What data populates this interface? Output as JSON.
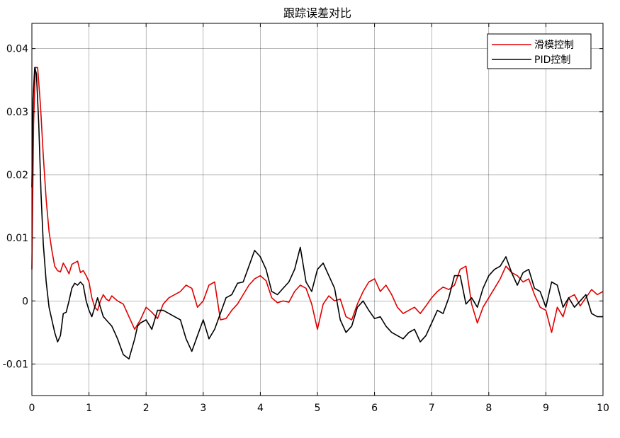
{
  "chart_data": {
    "type": "line",
    "title": "跟踪误差对比",
    "xlabel": "",
    "ylabel": "",
    "xlim": [
      0,
      10
    ],
    "ylim": [
      -0.015,
      0.044
    ],
    "xticks": [
      0,
      1,
      2,
      3,
      4,
      5,
      6,
      7,
      8,
      9,
      10
    ],
    "xtick_labels": [
      "0",
      "1",
      "2",
      "3",
      "4",
      "5",
      "6",
      "7",
      "8",
      "9",
      "10"
    ],
    "yticks": [
      -0.01,
      0,
      0.01,
      0.02,
      0.03,
      0.04
    ],
    "ytick_labels": [
      "-0.01",
      "0",
      "0.01",
      "0.02",
      "0.03",
      "0.04"
    ],
    "grid": true,
    "legend_position": "top-right",
    "series": [
      {
        "name": "滑模控制",
        "color": "#e00000",
        "x": [
          0,
          0.03,
          0.06,
          0.1,
          0.15,
          0.2,
          0.25,
          0.3,
          0.35,
          0.4,
          0.45,
          0.5,
          0.55,
          0.6,
          0.65,
          0.7,
          0.8,
          0.85,
          0.9,
          0.95,
          1.0,
          1.05,
          1.1,
          1.15,
          1.2,
          1.25,
          1.3,
          1.35,
          1.4,
          1.5,
          1.6,
          1.7,
          1.8,
          1.9,
          2.0,
          2.1,
          2.2,
          2.3,
          2.4,
          2.5,
          2.6,
          2.7,
          2.8,
          2.9,
          3.0,
          3.1,
          3.2,
          3.3,
          3.4,
          3.5,
          3.6,
          3.7,
          3.8,
          3.9,
          4.0,
          4.1,
          4.2,
          4.3,
          4.4,
          4.5,
          4.6,
          4.7,
          4.8,
          4.9,
          5.0,
          5.1,
          5.2,
          5.3,
          5.4,
          5.5,
          5.6,
          5.7,
          5.8,
          5.9,
          6.0,
          6.1,
          6.2,
          6.3,
          6.4,
          6.5,
          6.6,
          6.7,
          6.8,
          6.9,
          7.0,
          7.1,
          7.2,
          7.3,
          7.4,
          7.5,
          7.6,
          7.7,
          7.8,
          7.9,
          8.0,
          8.1,
          8.2,
          8.3,
          8.4,
          8.5,
          8.6,
          8.7,
          8.8,
          8.9,
          9.0,
          9.1,
          9.2,
          9.3,
          9.4,
          9.5,
          9.6,
          9.7,
          9.8,
          9.9,
          10.0
        ],
        "y": [
          0.005,
          0.028,
          0.037,
          0.037,
          0.031,
          0.023,
          0.016,
          0.011,
          0.008,
          0.0055,
          0.0048,
          0.0046,
          0.006,
          0.0052,
          0.0043,
          0.0058,
          0.0063,
          0.0045,
          0.0048,
          0.004,
          0.003,
          0.0005,
          -0.001,
          -0.0015,
          0.0,
          0.001,
          0.0003,
          0.0,
          0.0008,
          0.0,
          -0.0005,
          -0.0025,
          -0.0045,
          -0.003,
          -0.001,
          -0.0018,
          -0.0028,
          -0.0005,
          0.0005,
          0.001,
          0.0015,
          0.0025,
          0.002,
          -0.001,
          0.0,
          0.0025,
          0.003,
          -0.003,
          -0.0028,
          -0.0015,
          -0.0005,
          0.001,
          0.0025,
          0.0035,
          0.004,
          0.0032,
          0.0005,
          -0.0003,
          0.0,
          -0.0002,
          0.0015,
          0.0025,
          0.002,
          -0.0005,
          -0.0045,
          -0.0005,
          0.0008,
          0.0,
          0.0003,
          -0.0025,
          -0.003,
          -0.0005,
          0.0015,
          0.003,
          0.0035,
          0.0015,
          0.0025,
          0.001,
          -0.001,
          -0.002,
          -0.0015,
          -0.001,
          -0.002,
          -0.0008,
          0.0005,
          0.0015,
          0.0022,
          0.0018,
          0.0025,
          0.005,
          0.0055,
          -0.0005,
          -0.0035,
          -0.001,
          0.0005,
          0.002,
          0.0035,
          0.0055,
          0.0045,
          0.004,
          0.003,
          0.0035,
          0.001,
          -0.001,
          -0.0015,
          -0.005,
          -0.001,
          -0.0025,
          0.0005,
          0.001,
          -0.0008,
          0.0005,
          0.0018,
          0.001,
          0.0015
        ]
      },
      {
        "name": "PID控制",
        "color": "#000000",
        "x": [
          0,
          0.02,
          0.05,
          0.08,
          0.12,
          0.16,
          0.2,
          0.25,
          0.3,
          0.35,
          0.4,
          0.45,
          0.5,
          0.55,
          0.6,
          0.65,
          0.7,
          0.75,
          0.8,
          0.85,
          0.9,
          0.95,
          1.0,
          1.05,
          1.1,
          1.15,
          1.2,
          1.25,
          1.3,
          1.35,
          1.4,
          1.45,
          1.5,
          1.6,
          1.7,
          1.8,
          1.85,
          1.9,
          2.0,
          2.1,
          2.2,
          2.3,
          2.4,
          2.5,
          2.6,
          2.7,
          2.8,
          2.9,
          3.0,
          3.1,
          3.2,
          3.3,
          3.4,
          3.5,
          3.6,
          3.7,
          3.8,
          3.9,
          4.0,
          4.1,
          4.2,
          4.3,
          4.4,
          4.5,
          4.6,
          4.7,
          4.8,
          4.9,
          5.0,
          5.1,
          5.2,
          5.3,
          5.4,
          5.5,
          5.6,
          5.7,
          5.8,
          5.9,
          6.0,
          6.1,
          6.2,
          6.3,
          6.4,
          6.5,
          6.6,
          6.7,
          6.8,
          6.9,
          7.0,
          7.1,
          7.2,
          7.3,
          7.4,
          7.5,
          7.6,
          7.7,
          7.8,
          7.9,
          8.0,
          8.1,
          8.2,
          8.3,
          8.4,
          8.5,
          8.6,
          8.7,
          8.8,
          8.9,
          9.0,
          9.1,
          9.2,
          9.3,
          9.4,
          9.5,
          9.6,
          9.7,
          9.8,
          9.9,
          10.0
        ],
        "y": [
          0.018,
          0.032,
          0.037,
          0.036,
          0.028,
          0.017,
          0.009,
          0.003,
          -0.001,
          -0.003,
          -0.005,
          -0.0065,
          -0.0055,
          -0.002,
          -0.0018,
          0.0,
          0.002,
          0.0028,
          0.0025,
          0.003,
          0.0025,
          0.0,
          -0.0015,
          -0.0025,
          -0.001,
          0.0005,
          -0.001,
          -0.0025,
          -0.003,
          -0.0035,
          -0.004,
          -0.005,
          -0.006,
          -0.0085,
          -0.0092,
          -0.006,
          -0.004,
          -0.0035,
          -0.003,
          -0.0045,
          -0.0015,
          -0.0015,
          -0.002,
          -0.0025,
          -0.003,
          -0.006,
          -0.008,
          -0.0055,
          -0.003,
          -0.006,
          -0.0045,
          -0.002,
          0.0005,
          0.001,
          0.0028,
          0.003,
          0.0055,
          0.008,
          0.007,
          0.005,
          0.0015,
          0.001,
          0.002,
          0.003,
          0.005,
          0.0085,
          0.003,
          0.0015,
          0.005,
          0.006,
          0.004,
          0.002,
          -0.003,
          -0.005,
          -0.004,
          -0.001,
          0.0,
          -0.0015,
          -0.0028,
          -0.0025,
          -0.004,
          -0.005,
          -0.0055,
          -0.006,
          -0.005,
          -0.0045,
          -0.0065,
          -0.0055,
          -0.0035,
          -0.0015,
          -0.002,
          0.0005,
          0.004,
          0.004,
          -0.0005,
          0.0005,
          -0.001,
          0.002,
          0.004,
          0.005,
          0.0055,
          0.007,
          0.0045,
          0.0025,
          0.0045,
          0.005,
          0.002,
          0.0015,
          -0.001,
          0.003,
          0.0025,
          -0.001,
          0.0005,
          -0.001,
          0.0,
          0.001,
          -0.002,
          -0.0025,
          -0.0025
        ]
      }
    ]
  }
}
